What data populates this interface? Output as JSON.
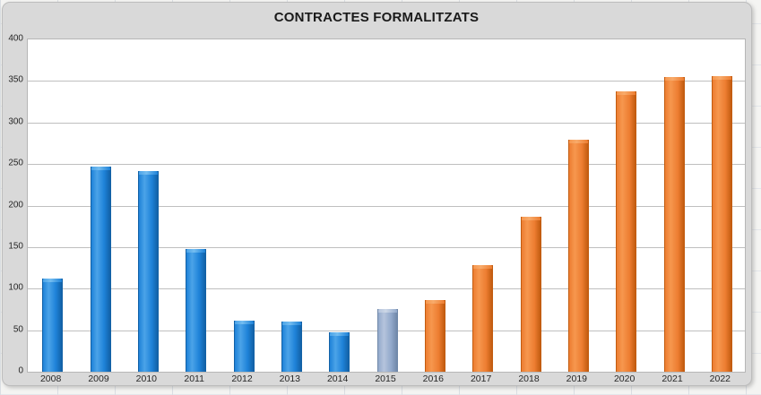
{
  "title": "CONTRACTES FORMALITZATS",
  "chart_data": {
    "type": "bar",
    "title": "CONTRACTES FORMALITZATS",
    "xlabel": "",
    "ylabel": "",
    "categories": [
      "2008",
      "2009",
      "2010",
      "2011",
      "2012",
      "2013",
      "2014",
      "2015",
      "2016",
      "2017",
      "2018",
      "2019",
      "2020",
      "2021",
      "2022"
    ],
    "values": [
      112,
      247,
      242,
      148,
      61,
      60,
      47,
      76,
      86,
      128,
      186,
      279,
      337,
      355,
      356
    ],
    "bar_colors": [
      "blue",
      "blue",
      "blue",
      "blue",
      "blue",
      "blue",
      "blue",
      "steel",
      "orange",
      "orange",
      "orange",
      "orange",
      "orange",
      "orange",
      "orange"
    ],
    "ylim": [
      0,
      400
    ],
    "yticks": [
      0,
      50,
      100,
      150,
      200,
      250,
      300,
      350,
      400
    ],
    "grid": "horizontal",
    "legend": "none",
    "palette": {
      "blue": {
        "light": "#4ba3e8",
        "base": "#1e82d8",
        "dark": "#1261a6",
        "cap": "#74bdf0"
      },
      "steel": {
        "light": "#b5c4dc",
        "base": "#92a9cb",
        "dark": "#7088a9",
        "cap": "#ccd7e7"
      },
      "orange": {
        "light": "#f6974e",
        "base": "#ed7d31",
        "dark": "#c25c10",
        "cap": "#f8ab6b"
      }
    },
    "colors": {
      "chart_background": "#d9d9d9",
      "plot_background": "#ffffff",
      "gridline": "#bfbfbf",
      "plot_border": "#b6b6b6",
      "axis_text": "#262626",
      "title_text": "#1a1a1a",
      "sheet_background": "#f4f4f2"
    }
  }
}
